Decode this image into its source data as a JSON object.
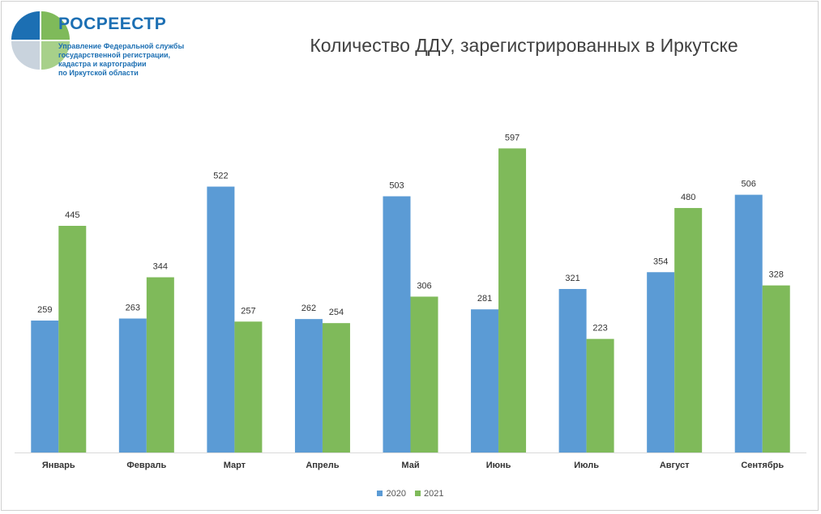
{
  "header": {
    "brand_name": "РОСРЕЕСТР",
    "org_lines": [
      "Управление Федеральной службы",
      "государственной регистрации,",
      "кадастра и картографии",
      "по Иркутской области"
    ]
  },
  "colors": {
    "series_2020": "#5b9bd5",
    "series_2021": "#7fba5a",
    "logo_blue": "#1c6fb3",
    "logo_green": "#7fba5a",
    "logo_grey": "#c9d3dd"
  },
  "chart_data": {
    "type": "bar",
    "title": "Количество ДДУ, зарегистрированных в Иркутске",
    "xlabel": "",
    "ylabel": "",
    "ylim": [
      0,
      650
    ],
    "grid": false,
    "legend_position": "bottom",
    "categories": [
      "Январь",
      "Февраль",
      "Март",
      "Апрель",
      "Май",
      "Июнь",
      "Июль",
      "Август",
      "Сентябрь"
    ],
    "series": [
      {
        "name": "2020",
        "values": [
          259,
          263,
          522,
          262,
          503,
          281,
          321,
          354,
          506
        ]
      },
      {
        "name": "2021",
        "values": [
          445,
          344,
          257,
          254,
          306,
          597,
          223,
          480,
          328
        ]
      }
    ]
  }
}
